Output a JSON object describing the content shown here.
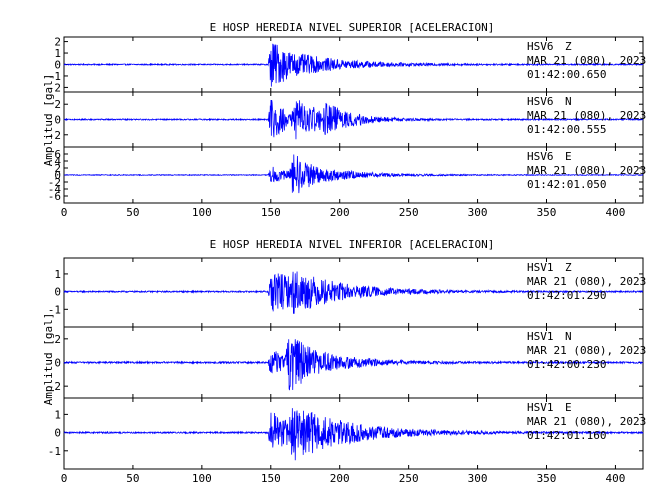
{
  "chart_data": [
    {
      "type": "line",
      "title": "E HOSP HEREDIA NIVEL SUPERIOR [ACELERACION]",
      "ylabel": "Amplitud [gal]",
      "xlim": [
        0,
        420
      ],
      "x_ticks": [
        0,
        50,
        100,
        150,
        200,
        250,
        300,
        350,
        400
      ],
      "x_tick_labels": [
        "0",
        "50",
        "100",
        "150",
        "200",
        "250",
        "300",
        "350",
        "400"
      ],
      "series": [
        {
          "station": "HSV6",
          "component": "Z",
          "date": "MAR 21 (080), 2023",
          "time": "01:42:00.650",
          "ylim": [
            -2.4,
            2.4
          ],
          "y_ticks": [
            -2,
            -1,
            0,
            1,
            2
          ],
          "y_tick_labels": [
            "-2",
            "-1",
            "0",
            "1",
            "2"
          ],
          "noise": 0.05,
          "events": [
            {
              "t": 148,
              "amp": 2.2,
              "rise": 2,
              "decay": 22
            },
            {
              "t": 170,
              "amp": 0.9,
              "rise": 3,
              "decay": 35
            }
          ]
        },
        {
          "station": "HSV6",
          "component": "N",
          "date": "MAR 21 (080), 2023",
          "time": "01:42:00.555",
          "ylim": [
            -3.6,
            3.6
          ],
          "y_ticks": [
            -2,
            0,
            2
          ],
          "y_tick_labels": [
            "-2",
            "0",
            "2"
          ],
          "noise": 0.08,
          "events": [
            {
              "t": 148,
              "amp": 2.6,
              "rise": 2,
              "decay": 18
            },
            {
              "t": 165,
              "amp": 2.8,
              "rise": 3,
              "decay": 25
            },
            {
              "t": 186,
              "amp": 2.4,
              "rise": 3,
              "decay": 20
            }
          ]
        },
        {
          "station": "HSV6",
          "component": "E",
          "date": "MAR 21 (080), 2023",
          "time": "01:42:01.050",
          "ylim": [
            -8,
            8
          ],
          "y_ticks": [
            -6,
            -4,
            -2,
            0,
            2,
            4,
            6
          ],
          "y_tick_labels": [
            "-6",
            "-4",
            "-2",
            "0",
            "2",
            "4",
            "6"
          ],
          "noise": 0.12,
          "events": [
            {
              "t": 148,
              "amp": 2.5,
              "rise": 2,
              "decay": 15
            },
            {
              "t": 163,
              "amp": 6.5,
              "rise": 3,
              "decay": 18
            },
            {
              "t": 185,
              "amp": 2.0,
              "rise": 3,
              "decay": 30
            }
          ]
        }
      ]
    },
    {
      "type": "line",
      "title": "E HOSP HEREDIA NIVEL INFERIOR [ACELERACION]",
      "ylabel": "Amplitud [gal]",
      "xlim": [
        0,
        420
      ],
      "x_ticks": [
        0,
        50,
        100,
        150,
        200,
        250,
        300,
        350,
        400
      ],
      "x_tick_labels": [
        "0",
        "50",
        "100",
        "150",
        "200",
        "250",
        "300",
        "350",
        "400"
      ],
      "series": [
        {
          "station": "HSV1",
          "component": "Z",
          "date": "MAR 21 (080), 2023",
          "time": "01:42:01.290",
          "ylim": [
            -2.0,
            1.9
          ],
          "y_ticks": [
            -1,
            0,
            1
          ],
          "y_tick_labels": [
            "-1",
            "0",
            "1"
          ],
          "noise": 0.04,
          "events": [
            {
              "t": 148,
              "amp": 1.4,
              "rise": 2,
              "decay": 25
            },
            {
              "t": 163,
              "amp": 1.3,
              "rise": 3,
              "decay": 35
            }
          ]
        },
        {
          "station": "HSV1",
          "component": "N",
          "date": "MAR 21 (080), 2023",
          "time": "01:42:00.230",
          "ylim": [
            -3.0,
            3.0
          ],
          "y_ticks": [
            -2,
            0,
            2
          ],
          "y_tick_labels": [
            "-2",
            "0",
            "2"
          ],
          "noise": 0.07,
          "events": [
            {
              "t": 148,
              "amp": 1.2,
              "rise": 2,
              "decay": 12
            },
            {
              "t": 160,
              "amp": 2.6,
              "rise": 3,
              "decay": 22
            },
            {
              "t": 180,
              "amp": 1.0,
              "rise": 3,
              "decay": 30
            }
          ]
        },
        {
          "station": "HSV1",
          "component": "E",
          "date": "MAR 21 (080), 2023",
          "time": "01:42:01.160",
          "ylim": [
            -2.0,
            1.9
          ],
          "y_ticks": [
            -1,
            0,
            1
          ],
          "y_tick_labels": [
            "-1",
            "0",
            "1"
          ],
          "noise": 0.04,
          "events": [
            {
              "t": 148,
              "amp": 1.2,
              "rise": 2,
              "decay": 20
            },
            {
              "t": 162,
              "amp": 1.6,
              "rise": 3,
              "decay": 40
            }
          ]
        }
      ]
    }
  ]
}
